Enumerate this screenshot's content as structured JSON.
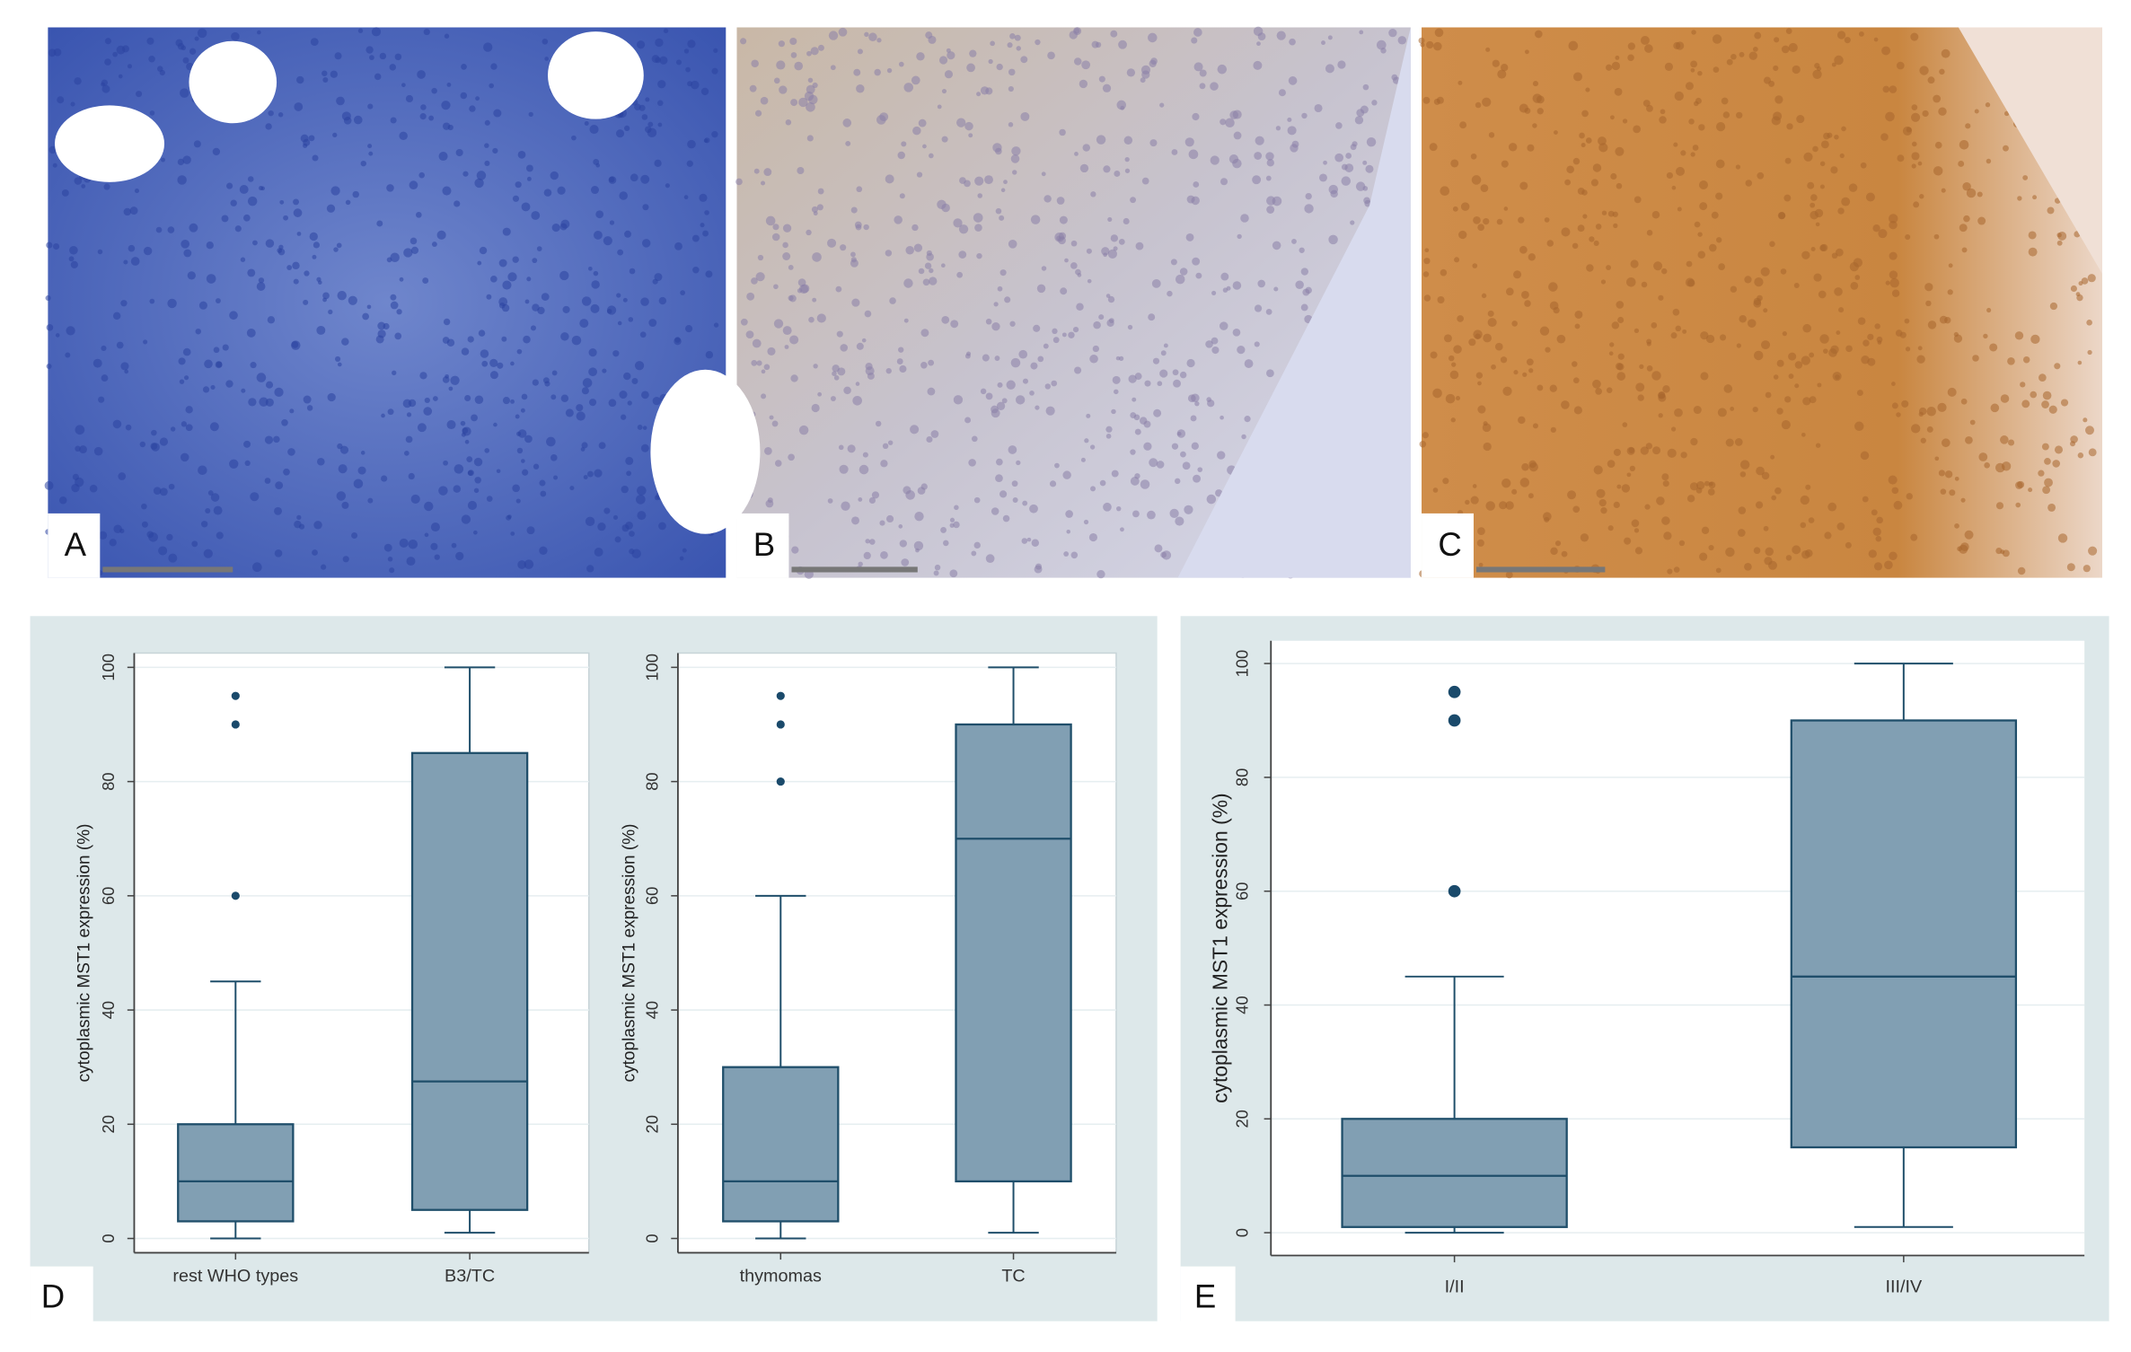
{
  "panel_labels": [
    "A",
    "B",
    "C",
    "D",
    "E"
  ],
  "chart_data": [
    {
      "type": "box",
      "ylabel": "cytoplasmic MST1 expression (%)",
      "categories": [
        "rest WHO types",
        "B3/TC"
      ],
      "boxes": [
        {
          "min": 0,
          "q1": 3,
          "median": 10,
          "q3": 20,
          "max": 45,
          "outliers": [
            60,
            90,
            95
          ]
        },
        {
          "min": 1,
          "q1": 5,
          "median": 27.5,
          "q3": 85,
          "max": 100,
          "outliers": []
        }
      ],
      "color": "#819fb3",
      "ylim": [
        -2.5,
        102.5
      ],
      "yticks": [
        0,
        20,
        40,
        60,
        80,
        100
      ],
      "grid": true
    },
    {
      "type": "box",
      "ylabel": "cytoplasmic MST1 expression (%)",
      "categories": [
        "thymomas",
        "TC"
      ],
      "boxes": [
        {
          "min": 0,
          "q1": 3,
          "median": 10,
          "q3": 30,
          "max": 60,
          "outliers": [
            80,
            90,
            95
          ]
        },
        {
          "min": 1,
          "q1": 10,
          "median": 70,
          "q3": 90,
          "max": 100,
          "outliers": []
        }
      ],
      "color": "#819fb3",
      "ylim": [
        -2.5,
        102.5
      ],
      "yticks": [
        0,
        20,
        40,
        60,
        80,
        100
      ],
      "grid": true
    },
    {
      "type": "box",
      "ylabel": "cytoplasmic MST1 expression (%)",
      "categories": [
        "I/II",
        "III/IV"
      ],
      "boxes": [
        {
          "min": 0,
          "q1": 1,
          "median": 10,
          "q3": 20,
          "max": 45,
          "outliers": [
            60,
            90,
            95
          ]
        },
        {
          "min": 1,
          "q1": 15,
          "median": 45,
          "q3": 90,
          "max": 100,
          "outliers": []
        }
      ],
      "color": "#819fb3",
      "ylim": [
        -4,
        104
      ],
      "yticks": [
        0,
        20,
        40,
        60,
        80,
        100
      ],
      "grid": true
    }
  ]
}
